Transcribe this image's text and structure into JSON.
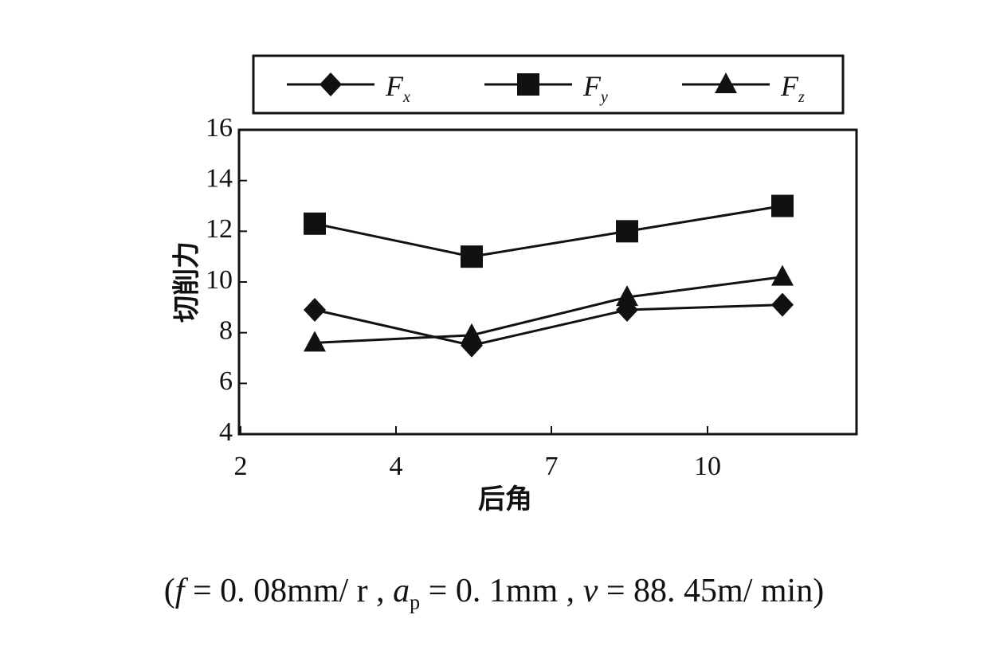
{
  "chart_data": {
    "type": "line",
    "title": "",
    "xlabel": "后角",
    "ylabel": "切削力",
    "x_ticks": [
      "2",
      "4",
      "7",
      "10"
    ],
    "y_ticks": [
      "4",
      "6",
      "8",
      "10",
      "12",
      "14",
      "16"
    ],
    "ylim": [
      4,
      16
    ],
    "grid": false,
    "legend_position": "top",
    "x": [
      3,
      5,
      8,
      11
    ],
    "series": [
      {
        "name": "Fx",
        "legend_label": "F",
        "legend_sub": "x",
        "marker": "diamond",
        "values": [
          8.9,
          7.5,
          8.9,
          9.1
        ]
      },
      {
        "name": "Fy",
        "legend_label": "F",
        "legend_sub": "y",
        "marker": "square",
        "values": [
          12.3,
          11.0,
          12.0,
          13.0
        ]
      },
      {
        "name": "Fz",
        "legend_label": "F",
        "legend_sub": "z",
        "marker": "triangle",
        "values": [
          7.6,
          7.9,
          9.4,
          10.2
        ]
      }
    ]
  },
  "caption": {
    "open": "(",
    "f_var": "f",
    "f_value": " = 0. 08mm/ r , ",
    "ap_var": "a",
    "ap_sub": "p",
    "ap_value": " = 0. 1mm , ",
    "v_var": "v",
    "v_value": " = 88. 45m/ min)"
  }
}
